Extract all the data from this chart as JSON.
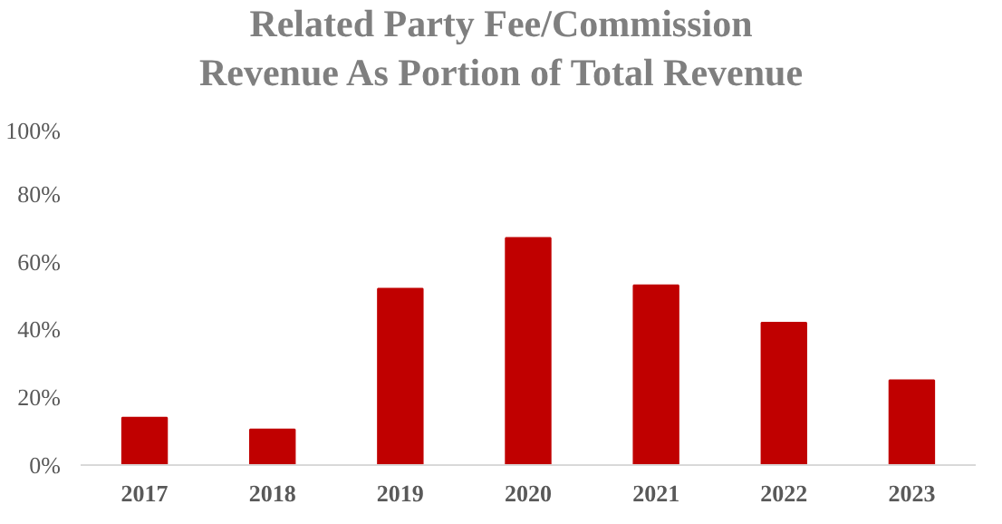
{
  "chart_data": {
    "type": "bar",
    "title": "Related Party Fee/Commission\nRevenue As Portion of Total Revenue",
    "categories": [
      "2017",
      "2018",
      "2019",
      "2020",
      "2021",
      "2022",
      "2023"
    ],
    "values": [
      14,
      10.5,
      52,
      67,
      53,
      42,
      25
    ],
    "color": "#c00000",
    "ylim": [
      0,
      100
    ],
    "yticks": [
      {
        "value": 0,
        "label": "0%"
      },
      {
        "value": 20,
        "label": "20%"
      },
      {
        "value": 40,
        "label": "40%"
      },
      {
        "value": 60,
        "label": "60%"
      },
      {
        "value": 80,
        "label": "80%"
      },
      {
        "value": 100,
        "label": "100%"
      }
    ],
    "grid": false
  }
}
